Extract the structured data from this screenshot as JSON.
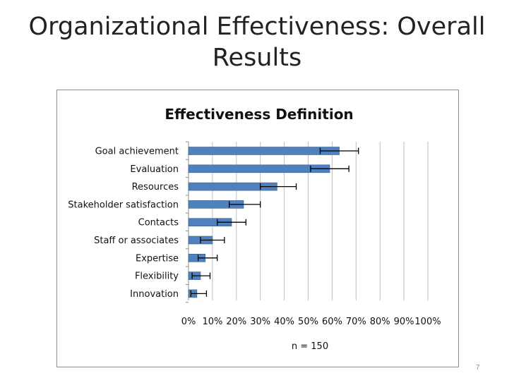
{
  "slide": {
    "title": "Organizational Effectiveness: Overall Results",
    "page_number": "7"
  },
  "colors": {
    "bar": "#4f81bd",
    "bar_edge": "#385d8a",
    "grid": "#bfbfbf",
    "error_bar": "#000000"
  },
  "chart_data": {
    "type": "bar",
    "orientation": "horizontal",
    "title": "Effectiveness Definition",
    "categories": [
      "Goal achievement",
      "Evaluation",
      "Resources",
      "Stakeholder satisfaction",
      "Contacts",
      "Staff or associates",
      "Expertise",
      "Flexibility",
      "Innovation"
    ],
    "values": [
      63,
      59,
      37,
      23,
      18,
      10,
      7,
      5,
      3.5
    ],
    "error_low": [
      55,
      51,
      30,
      17,
      12,
      5,
      4,
      1.5,
      1
    ],
    "error_high": [
      71,
      67,
      45,
      30,
      24,
      15,
      12,
      9,
      7.5
    ],
    "xlim": [
      0,
      100
    ],
    "xticks": [
      "0%",
      "10%",
      "20%",
      "30%",
      "40%",
      "50%",
      "60%",
      "70%",
      "80%",
      "90%",
      "100%"
    ],
    "grid": true,
    "xlabel": "",
    "ylabel": "",
    "note": "n = 150"
  }
}
